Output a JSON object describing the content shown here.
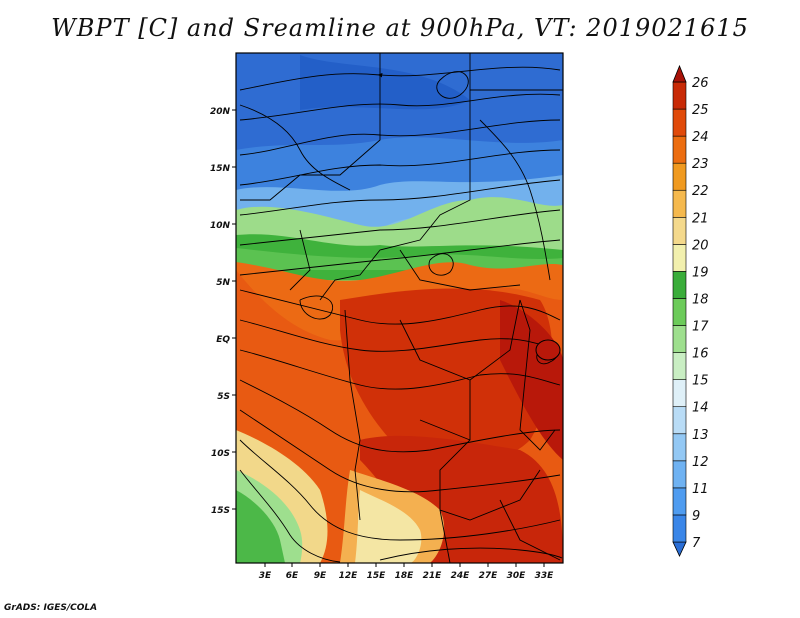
{
  "title": "WBPT [C] and Sreamline at 900hPa, VT: 2019021615",
  "credit": "GrADS: IGES/COLA",
  "map": {
    "lat_ticks": [
      "20N",
      "15N",
      "10N",
      "5N",
      "EQ",
      "5S",
      "10S",
      "15S"
    ],
    "lon_ticks": [
      "3E",
      "6E",
      "9E",
      "12E",
      "15E",
      "18E",
      "21E",
      "24E",
      "27E",
      "30E",
      "33E"
    ]
  },
  "colorbar": {
    "levels": [
      "7",
      "9",
      "11",
      "12",
      "13",
      "14",
      "15",
      "16",
      "17",
      "18",
      "19",
      "20",
      "21",
      "22",
      "23",
      "24",
      "25",
      "26"
    ],
    "colors": [
      "#2a6ed6",
      "#3a86e8",
      "#4f9cf0",
      "#6fb2f2",
      "#93c8f4",
      "#b9dcf6",
      "#dff0f8",
      "#c9eec3",
      "#9edf8e",
      "#6ccb5a",
      "#3aad3a",
      "#f2f0ae",
      "#f4d98c",
      "#f5b94e",
      "#f09a20",
      "#ec6d10",
      "#e04a0a",
      "#c82a06",
      "#a81208"
    ]
  }
}
